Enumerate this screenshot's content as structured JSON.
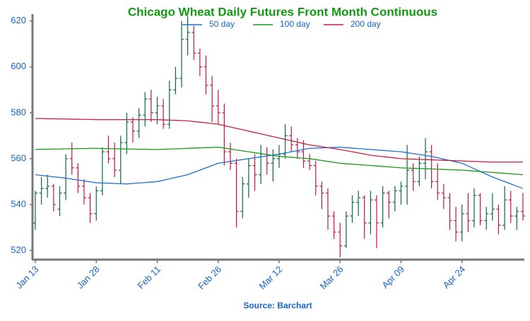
{
  "chart_data": {
    "type": "ohlc",
    "title": "Chicago Wheat Daily Futures Front Month Continuous",
    "source": "Source: Barchart",
    "categories": [
      "Jan 13",
      null,
      null,
      null,
      null,
      null,
      null,
      null,
      null,
      null,
      "Jan 28",
      null,
      null,
      null,
      null,
      null,
      null,
      null,
      null,
      null,
      "Feb 11",
      null,
      null,
      null,
      null,
      null,
      null,
      null,
      null,
      null,
      "Feb 26",
      null,
      null,
      null,
      null,
      null,
      null,
      null,
      null,
      null,
      "Mar 12",
      null,
      null,
      null,
      null,
      null,
      null,
      null,
      null,
      null,
      "Mar 26",
      null,
      null,
      null,
      null,
      null,
      null,
      null,
      null,
      null,
      "Apr 09",
      null,
      null,
      null,
      null,
      null,
      null,
      null,
      null,
      null,
      "Apr 24",
      null,
      null,
      null,
      null,
      null,
      null,
      null,
      null,
      null,
      null
    ],
    "open": [
      532,
      545,
      547,
      548,
      538,
      545,
      560,
      556,
      548,
      543,
      536,
      546,
      563,
      560,
      555,
      567,
      576,
      572,
      579,
      586,
      580,
      583,
      575,
      590,
      595,
      612,
      615,
      606,
      600,
      592,
      583,
      580,
      563,
      558,
      537,
      549,
      557,
      553,
      562,
      558,
      560,
      562,
      570,
      566,
      563,
      559,
      557,
      548,
      545,
      535,
      528,
      522,
      535,
      541,
      543,
      532,
      542,
      532,
      545,
      541,
      546,
      548,
      555,
      550,
      558,
      563,
      550,
      545,
      543,
      533,
      528,
      536,
      533,
      544,
      533,
      536,
      538,
      531,
      542,
      535,
      537
    ],
    "high": [
      546,
      552,
      553,
      549,
      548,
      562,
      567,
      558,
      551,
      545,
      548,
      565,
      570,
      567,
      570,
      580,
      578,
      582,
      589,
      590,
      587,
      586,
      594,
      600,
      620,
      622,
      618,
      608,
      605,
      596,
      590,
      584,
      567,
      560,
      552,
      560,
      562,
      566,
      565,
      564,
      566,
      575,
      574,
      569,
      568,
      562,
      559,
      550,
      547,
      537,
      532,
      537,
      544,
      546,
      544,
      546,
      544,
      548,
      546,
      548,
      550,
      566,
      558,
      561,
      569,
      566,
      558,
      549,
      545,
      539,
      540,
      545,
      547,
      545,
      539,
      545,
      540,
      548,
      546,
      539,
      545
    ],
    "low": [
      529,
      540,
      543,
      537,
      535,
      542,
      553,
      545,
      540,
      532,
      533,
      544,
      558,
      552,
      549,
      562,
      567,
      569,
      574,
      576,
      575,
      573,
      573,
      588,
      591,
      605,
      603,
      596,
      588,
      576,
      575,
      557,
      555,
      530,
      534,
      543,
      546,
      549,
      553,
      550,
      556,
      560,
      563,
      560,
      556,
      555,
      544,
      538,
      529,
      525,
      517,
      521,
      532,
      535,
      525,
      527,
      521,
      530,
      534,
      537,
      540,
      540,
      546,
      548,
      551,
      547,
      542,
      538,
      529,
      524,
      524,
      528,
      530,
      531,
      529,
      533,
      527,
      529,
      532,
      529,
      533
    ],
    "close": [
      545,
      547,
      548,
      540,
      545,
      560,
      556,
      548,
      543,
      536,
      546,
      563,
      560,
      555,
      567,
      576,
      572,
      579,
      586,
      580,
      583,
      575,
      590,
      595,
      612,
      615,
      606,
      600,
      592,
      583,
      580,
      563,
      558,
      537,
      549,
      557,
      553,
      562,
      558,
      560,
      562,
      570,
      566,
      563,
      559,
      557,
      548,
      545,
      535,
      528,
      522,
      535,
      541,
      543,
      532,
      542,
      532,
      545,
      541,
      546,
      548,
      555,
      550,
      558,
      563,
      550,
      545,
      543,
      533,
      528,
      536,
      533,
      544,
      533,
      536,
      538,
      531,
      542,
      535,
      537,
      535
    ],
    "up_color": "#0b6b3e",
    "down_color": "#c4153d",
    "series": [
      {
        "name": "50 day",
        "color": "#1f6fd8",
        "values": [
          553,
          552.7,
          552.4,
          552.1,
          551.8,
          551.5,
          551.1,
          550.7,
          550.3,
          549.9,
          549.5,
          549.4,
          549.3,
          549.2,
          549.1,
          549,
          549.2,
          549.4,
          549.6,
          549.8,
          550,
          550.6,
          551.2,
          551.8,
          552.4,
          553,
          554,
          555,
          556,
          557,
          558,
          558.4,
          558.8,
          559.2,
          559.6,
          560,
          560.4,
          560.8,
          561.2,
          561.6,
          562,
          562.5,
          563,
          563.5,
          564,
          564.5,
          564.6,
          564.7,
          564.8,
          564.9,
          565,
          564.8,
          564.6,
          564.4,
          564.2,
          564,
          563.8,
          563.6,
          563.4,
          563.2,
          563,
          562.6,
          562.2,
          561.8,
          561.4,
          561,
          560.4,
          559.8,
          559.2,
          558.6,
          558,
          556.8,
          555.6,
          554.4,
          553.2,
          552,
          551,
          550,
          549,
          548,
          547
        ]
      },
      {
        "name": "100 day",
        "color": "#1a9a1a",
        "values": [
          564,
          564.1,
          564.1,
          564.2,
          564.2,
          564.3,
          564.3,
          564.4,
          564.4,
          564.5,
          564.5,
          564.4,
          564.4,
          564.3,
          564.3,
          564.2,
          564.2,
          564.1,
          564.1,
          564,
          564,
          564.1,
          564.2,
          564.3,
          564.4,
          564.5,
          564.6,
          564.7,
          564.8,
          564.9,
          565,
          564.6,
          564.2,
          563.8,
          563.4,
          563,
          562.6,
          562.2,
          561.8,
          561.4,
          561,
          560.8,
          560.6,
          560.4,
          560.2,
          560,
          559.6,
          559.2,
          558.8,
          558.4,
          558,
          557.8,
          557.6,
          557.4,
          557.2,
          557,
          556.8,
          556.6,
          556.4,
          556.2,
          556,
          555.9,
          555.8,
          555.7,
          555.6,
          555.5,
          555.4,
          555.3,
          555.2,
          555.1,
          555,
          554.8,
          554.6,
          554.4,
          554.2,
          554,
          553.8,
          553.6,
          553.4,
          553.2,
          553
        ]
      },
      {
        "name": "200 day",
        "color": "#c8203c",
        "values": [
          577.5,
          577.5,
          577.4,
          577.4,
          577.3,
          577.3,
          577.2,
          577.2,
          577.1,
          577.1,
          577,
          577,
          577,
          577,
          577,
          577,
          577,
          577,
          577,
          577,
          577,
          576.9,
          576.8,
          576.7,
          576.6,
          576.5,
          576.2,
          575.9,
          575.6,
          575.3,
          575,
          574.4,
          573.8,
          573.2,
          572.6,
          572,
          571.4,
          570.8,
          570.2,
          569.6,
          569,
          568.4,
          567.8,
          567.2,
          566.6,
          566,
          565.6,
          565.2,
          564.8,
          564.4,
          564,
          563.5,
          563,
          562.5,
          562,
          561.5,
          561.2,
          560.9,
          560.6,
          560.3,
          560,
          559.9,
          559.8,
          559.7,
          559.6,
          559.5,
          559.4,
          559.3,
          559.2,
          559.1,
          559,
          558.9,
          558.8,
          558.7,
          558.6,
          558.5,
          558.5,
          558.5,
          558.5,
          558.5,
          558.5
        ]
      }
    ],
    "ylim": [
      516,
      623
    ],
    "yticks": [
      520,
      540,
      560,
      580,
      600,
      620
    ]
  }
}
